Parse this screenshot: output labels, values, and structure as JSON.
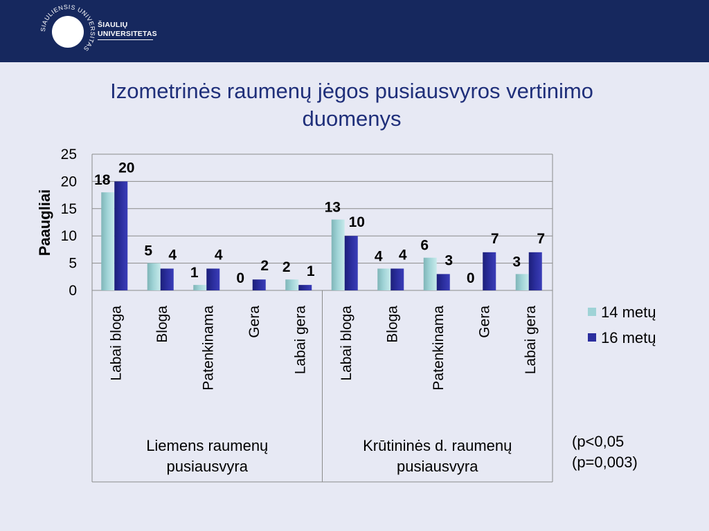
{
  "header": {
    "logo_ring_text": "SIAULIENSIS UNIVERSITAS",
    "logo_line1": "ŠIAULIŲ",
    "logo_line2": "UNIVERSITETAS"
  },
  "title_line1": "Izometrinės raumenų jėgos pusiausvyros vertinimo",
  "title_line2": "duomenys",
  "note_line1": "(p<0,05",
  "note_line2": "(p=0,003)",
  "colors": {
    "header": "#16285e",
    "series_14": "#9fd3d6",
    "series_16": "#2b2e9e",
    "title": "#1f2f7a",
    "background": "#e7e9f4"
  },
  "chart_data": {
    "type": "bar",
    "ylabel": "Paaugliai",
    "ylim": [
      0,
      25
    ],
    "yticks": [
      "0",
      "5",
      "10",
      "15",
      "20",
      "25"
    ],
    "grid": true,
    "legend_position": "right",
    "categories": [
      "Labai bloga",
      "Bloga",
      "Patenkinama",
      "Gera",
      "Labai gera",
      "Labai bloga",
      "Bloga",
      "Patenkinama",
      "Gera",
      "Labai gera"
    ],
    "groups": [
      {
        "label": "Liemens raumenų pusiausvyra",
        "label_lines": [
          "Liemens raumenų",
          "pusiausvyra"
        ],
        "count": 5
      },
      {
        "label": "Krūtininės d. raumenų pusiausvyra",
        "label_lines": [
          "Krūtininės d. raumenų",
          "pusiausvyra"
        ],
        "count": 5
      }
    ],
    "series": [
      {
        "name": "14 metų",
        "values": [
          18,
          5,
          1,
          0,
          2,
          13,
          4,
          6,
          0,
          3
        ]
      },
      {
        "name": "16 metų",
        "values": [
          20,
          4,
          4,
          2,
          1,
          10,
          4,
          3,
          7,
          7
        ]
      }
    ]
  }
}
